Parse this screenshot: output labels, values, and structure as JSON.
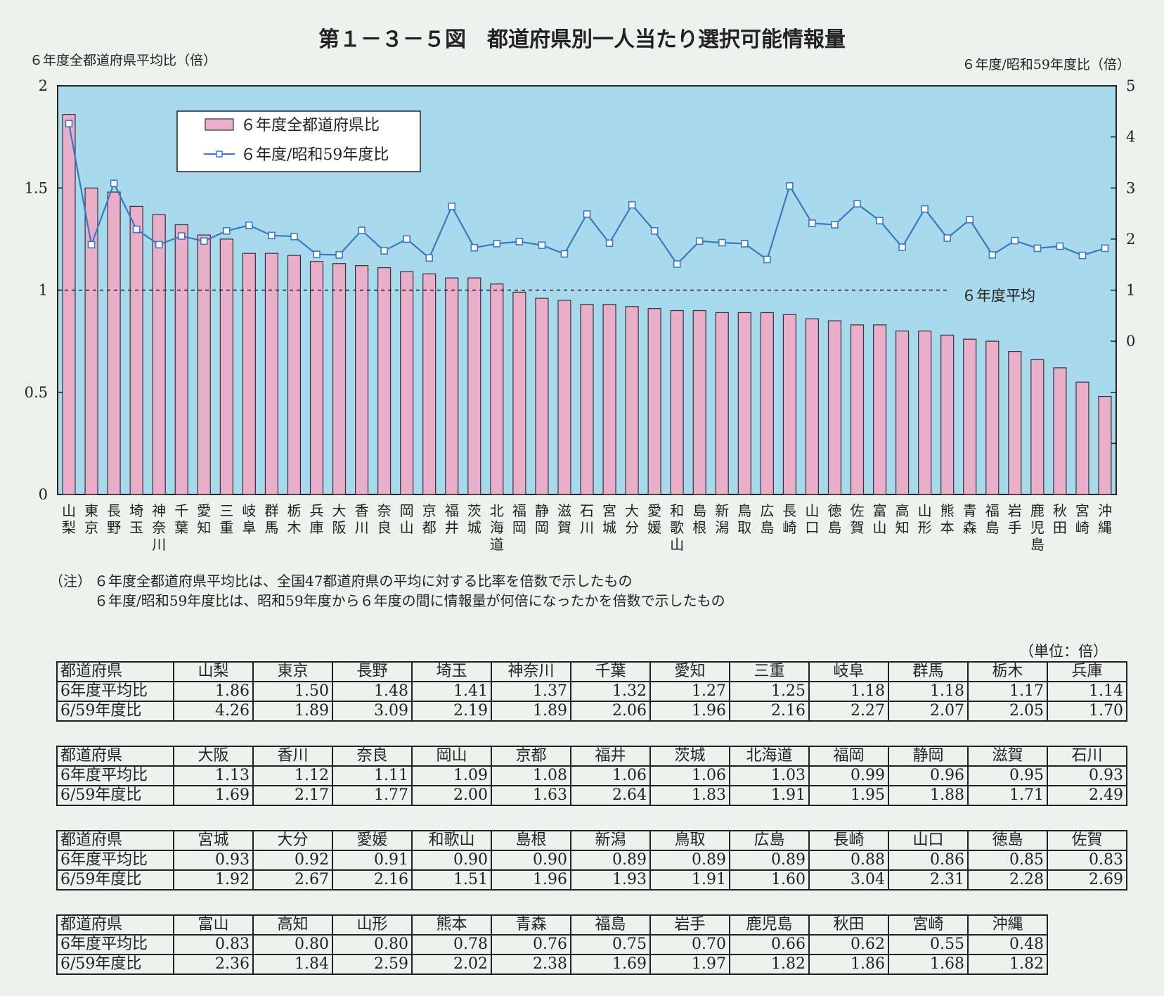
{
  "title": "第１－３－５図　都道府県別一人当たり選択可能情報量",
  "chart_data": {
    "type": "bar+line",
    "title": "第１－３－５図　都道府県別一人当たり選択可能情報量",
    "ylabel_left": "６年度全都道府県平均比（倍）",
    "ylabel_right": "６年度/昭和59年度比（倍）",
    "ylim_left": [
      0,
      2
    ],
    "ylim_right": [
      -3,
      5
    ],
    "yticks_left": [
      "0",
      "0.5",
      "1",
      "1.5",
      "2"
    ],
    "yticks_right": [
      "0",
      "1",
      "2",
      "3",
      "4",
      "5"
    ],
    "average_line": {
      "value": 1,
      "label": "６年度平均"
    },
    "legend": {
      "position": "top-left",
      "bar_label": "６年度全都道府県比",
      "line_label": "６年度/昭和59年度比"
    },
    "categories": [
      "山梨",
      "東京",
      "長野",
      "埼玉",
      "神奈川",
      "千葉",
      "愛知",
      "三重",
      "岐阜",
      "群馬",
      "栃木",
      "兵庫",
      "大阪",
      "香川",
      "奈良",
      "岡山",
      "京都",
      "福井",
      "茨城",
      "北海道",
      "福岡",
      "静岡",
      "滋賀",
      "石川",
      "宮城",
      "大分",
      "愛媛",
      "和歌山",
      "島根",
      "新潟",
      "鳥取",
      "広島",
      "長崎",
      "山口",
      "徳島",
      "佐賀",
      "富山",
      "高知",
      "山形",
      "熊本",
      "青森",
      "福島",
      "岩手",
      "鹿児島",
      "秋田",
      "宮崎",
      "沖縄"
    ],
    "series": [
      {
        "name": "６年度全都道府県比",
        "type": "bar",
        "axis": "left",
        "color": "#e9aec9",
        "values": [
          1.86,
          1.5,
          1.48,
          1.41,
          1.37,
          1.32,
          1.27,
          1.25,
          1.18,
          1.18,
          1.17,
          1.14,
          1.13,
          1.12,
          1.11,
          1.09,
          1.08,
          1.06,
          1.06,
          1.03,
          0.99,
          0.96,
          0.95,
          0.93,
          0.93,
          0.92,
          0.91,
          0.9,
          0.9,
          0.89,
          0.89,
          0.89,
          0.88,
          0.86,
          0.85,
          0.83,
          0.83,
          0.8,
          0.8,
          0.78,
          0.76,
          0.75,
          0.7,
          0.66,
          0.62,
          0.55,
          0.48
        ]
      },
      {
        "name": "６年度/昭和59年度比",
        "type": "line",
        "axis": "right",
        "color": "#3a78c4",
        "values": [
          4.26,
          1.89,
          3.09,
          2.19,
          1.89,
          2.06,
          1.96,
          2.16,
          2.27,
          2.07,
          2.05,
          1.7,
          1.69,
          2.17,
          1.77,
          2.0,
          1.63,
          2.64,
          1.83,
          1.91,
          1.95,
          1.88,
          1.71,
          2.49,
          1.92,
          2.67,
          2.16,
          1.51,
          1.96,
          1.93,
          1.91,
          1.6,
          3.04,
          2.31,
          2.28,
          2.69,
          2.36,
          1.84,
          2.59,
          2.02,
          2.38,
          1.69,
          1.97,
          1.82,
          1.86,
          1.68,
          1.82
        ]
      }
    ],
    "colors": {
      "background": "#a9d9ec",
      "bar": "#e9aec9",
      "line": "#3a78c4"
    }
  },
  "notes": {
    "lead": "（注）",
    "line1": "６年度全都道府県平均比は、全国47都道府県の平均に対する比率を倍数で示したもの",
    "line2": "６年度/昭和59年度比は、昭和59年度から６年度の間に情報量が何倍になったかを倍数で示したもの"
  },
  "table": {
    "unit": "（単位：倍）",
    "row_headers": [
      "都道府県",
      "6年度平均比",
      "6/59年度比"
    ],
    "blocks": [
      {
        "prefs": [
          "山梨",
          "東京",
          "長野",
          "埼玉",
          "神奈川",
          "千葉",
          "愛知",
          "三重",
          "岐阜",
          "群馬",
          "栃木",
          "兵庫"
        ],
        "avg": [
          "1.86",
          "1.50",
          "1.48",
          "1.41",
          "1.37",
          "1.32",
          "1.27",
          "1.25",
          "1.18",
          "1.18",
          "1.17",
          "1.14"
        ],
        "ratio": [
          "4.26",
          "1.89",
          "3.09",
          "2.19",
          "1.89",
          "2.06",
          "1.96",
          "2.16",
          "2.27",
          "2.07",
          "2.05",
          "1.70"
        ]
      },
      {
        "prefs": [
          "大阪",
          "香川",
          "奈良",
          "岡山",
          "京都",
          "福井",
          "茨城",
          "北海道",
          "福岡",
          "静岡",
          "滋賀",
          "石川"
        ],
        "avg": [
          "1.13",
          "1.12",
          "1.11",
          "1.09",
          "1.08",
          "1.06",
          "1.06",
          "1.03",
          "0.99",
          "0.96",
          "0.95",
          "0.93"
        ],
        "ratio": [
          "1.69",
          "2.17",
          "1.77",
          "2.00",
          "1.63",
          "2.64",
          "1.83",
          "1.91",
          "1.95",
          "1.88",
          "1.71",
          "2.49"
        ]
      },
      {
        "prefs": [
          "宮城",
          "大分",
          "愛媛",
          "和歌山",
          "島根",
          "新潟",
          "鳥取",
          "広島",
          "長崎",
          "山口",
          "徳島",
          "佐賀"
        ],
        "avg": [
          "0.93",
          "0.92",
          "0.91",
          "0.90",
          "0.90",
          "0.89",
          "0.89",
          "0.89",
          "0.88",
          "0.86",
          "0.85",
          "0.83"
        ],
        "ratio": [
          "1.92",
          "2.67",
          "2.16",
          "1.51",
          "1.96",
          "1.93",
          "1.91",
          "1.60",
          "3.04",
          "2.31",
          "2.28",
          "2.69"
        ]
      },
      {
        "prefs": [
          "富山",
          "高知",
          "山形",
          "熊本",
          "青森",
          "福島",
          "岩手",
          "鹿児島",
          "秋田",
          "宮崎",
          "沖縄"
        ],
        "avg": [
          "0.83",
          "0.80",
          "0.80",
          "0.78",
          "0.76",
          "0.75",
          "0.70",
          "0.66",
          "0.62",
          "0.55",
          "0.48"
        ],
        "ratio": [
          "2.36",
          "1.84",
          "2.59",
          "2.02",
          "2.38",
          "1.69",
          "1.97",
          "1.82",
          "1.86",
          "1.68",
          "1.82"
        ]
      }
    ]
  }
}
